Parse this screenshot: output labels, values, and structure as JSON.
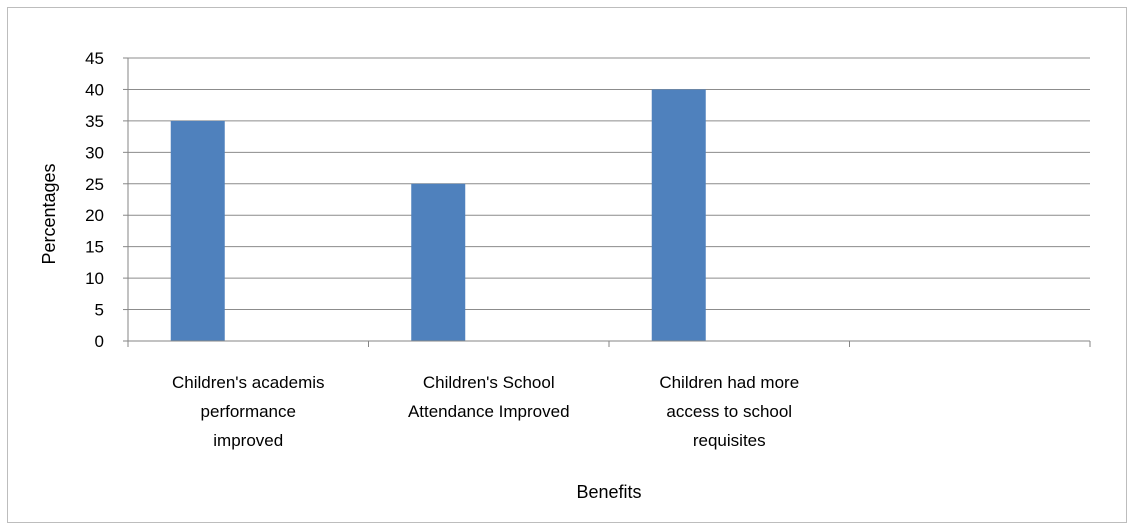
{
  "chart_data": {
    "type": "bar",
    "categories": [
      [
        "Children's academis",
        "performance",
        "improved"
      ],
      [
        "Children's School",
        "Attendance Improved"
      ],
      [
        "Children had more",
        "access to school",
        "requisites"
      ],
      [
        ""
      ]
    ],
    "values": [
      35,
      25,
      40,
      null
    ],
    "title": "",
    "xlabel": "Benefits",
    "ylabel": "Percentages",
    "ylim": [
      0,
      45
    ],
    "yticks": [
      0,
      5,
      10,
      15,
      20,
      25,
      30,
      35,
      40,
      45
    ],
    "grid": true,
    "legend": "none",
    "bar_color": "#4f81bd",
    "grid_color": "#8c8c8c"
  }
}
